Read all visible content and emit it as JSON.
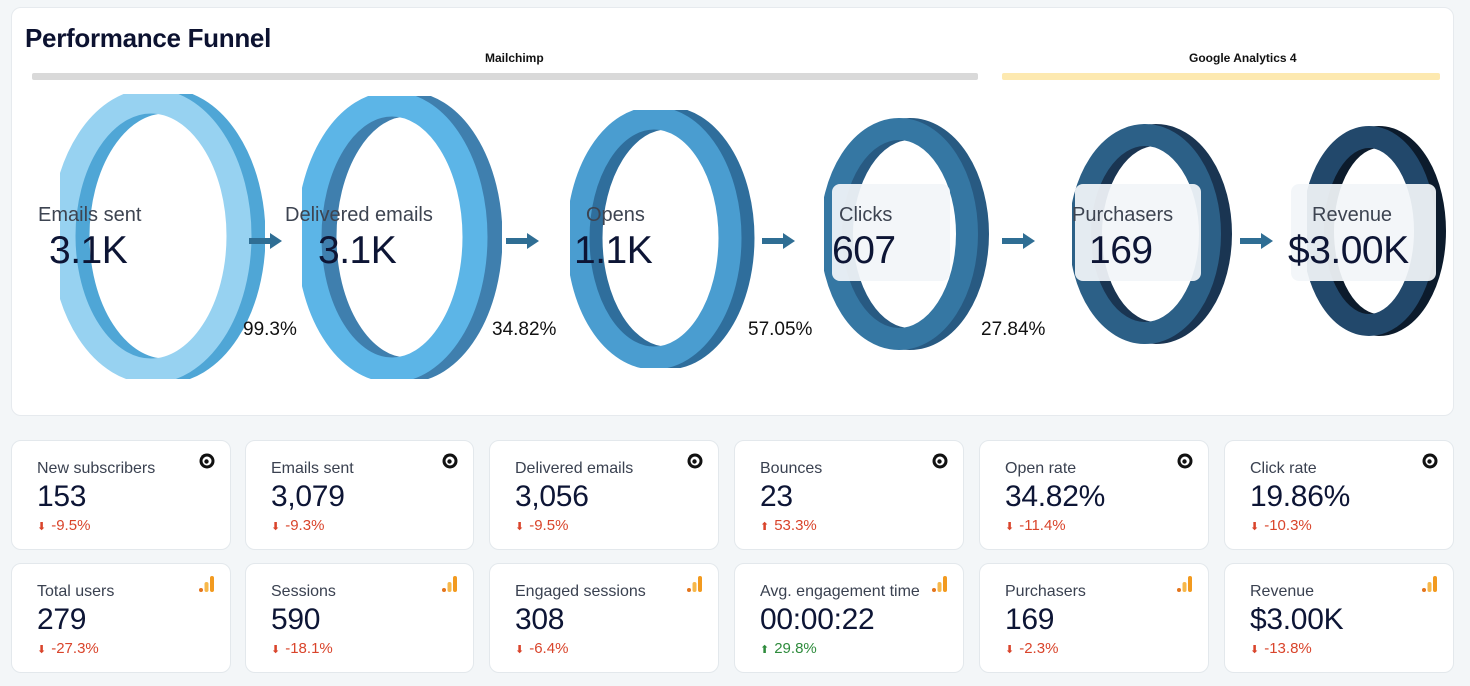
{
  "funnel": {
    "title": "Performance Funnel",
    "sources": [
      {
        "label": "Mailchimp",
        "bar_color": "#d9d9d9"
      },
      {
        "label": "Google Analytics 4",
        "bar_color": "#fde9b0"
      }
    ],
    "stages": [
      {
        "name": "Emails sent",
        "value": "3.1K",
        "conversion": "99.3%"
      },
      {
        "name": "Delivered emails",
        "value": "3.1K",
        "conversion": "34.82%"
      },
      {
        "name": "Opens",
        "value": "1.1K",
        "conversion": "57.05%"
      },
      {
        "name": "Clicks",
        "value": "607",
        "conversion": "27.84%"
      },
      {
        "name": "Purchasers",
        "value": "169"
      },
      {
        "name": "Revenue",
        "value": "$3.00K"
      }
    ],
    "colors": {
      "arrow": "#2f6e94"
    }
  },
  "kpis": {
    "mailchimp": [
      {
        "label": "New subscribers",
        "value": "153",
        "delta": "-9.5%",
        "icon": "mailchimp-icon"
      },
      {
        "label": "Emails sent",
        "value": "3,079",
        "delta": "-9.3%",
        "icon": "mailchimp-icon"
      },
      {
        "label": "Delivered emails",
        "value": "3,056",
        "delta": "-9.5%",
        "icon": "mailchimp-icon"
      },
      {
        "label": "Bounces",
        "value": "23",
        "delta": "53.3%",
        "icon": "mailchimp-icon"
      },
      {
        "label": "Open rate",
        "value": "34.82%",
        "delta": "-11.4%",
        "icon": "mailchimp-icon"
      },
      {
        "label": "Click rate",
        "value": "19.86%",
        "delta": "-10.3%",
        "icon": "mailchimp-icon"
      }
    ],
    "ga4": [
      {
        "label": "Total users",
        "value": "279",
        "delta": "-27.3%",
        "icon": "google-analytics-icon"
      },
      {
        "label": "Sessions",
        "value": "590",
        "delta": "-18.1%",
        "icon": "google-analytics-icon"
      },
      {
        "label": "Engaged sessions",
        "value": "308",
        "delta": "-6.4%",
        "icon": "google-analytics-icon"
      },
      {
        "label": "Avg. engagement time",
        "value": "00:00:22",
        "delta": "29.8%",
        "icon": "google-analytics-icon"
      },
      {
        "label": "Purchasers",
        "value": "169",
        "delta": "-2.3%",
        "icon": "google-analytics-icon"
      },
      {
        "label": "Revenue",
        "value": "$3.00K",
        "delta": "-13.8%",
        "icon": "google-analytics-icon"
      }
    ],
    "colors": {
      "down": "#d9442b",
      "up": "#2e8b3c",
      "ga_icon": "#f29a1f"
    }
  }
}
